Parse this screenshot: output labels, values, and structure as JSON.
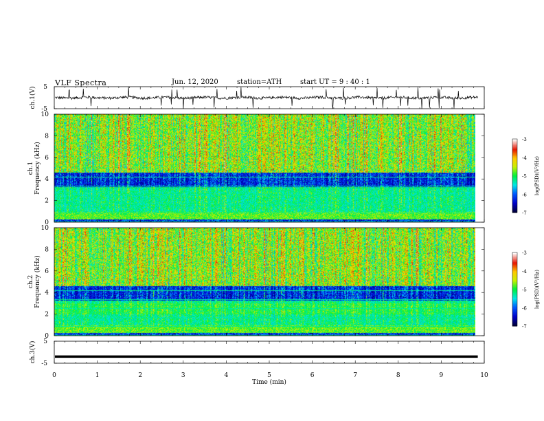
{
  "header": {
    "title": "VLF  Spectra",
    "date": "Jun. 12, 2020",
    "station": "station=ATH",
    "start": "start  UT  =   9 : 40 : 1"
  },
  "colors": {
    "waveform": "#000000",
    "colormap": [
      "#000080",
      "#0000ff",
      "#00ffff",
      "#00ff00",
      "#ffff00",
      "#ff0000",
      "#ffffff"
    ]
  },
  "chart_data": [
    {
      "type": "line",
      "name": "ch1-waveform",
      "ylabel": "ch.1(V)",
      "ylim": [
        -5,
        5
      ],
      "yticks": [
        -5,
        5
      ],
      "xlim": [
        0,
        10
      ],
      "description_level": 0,
      "noise_amplitude": 1.0,
      "spikes": true
    },
    {
      "type": "heatmap",
      "name": "ch1-spectrogram",
      "ylabel_top": "ch.1",
      "ylabel": "Frequency  (kHz)",
      "ylim": [
        0,
        10
      ],
      "yticks": [
        0,
        2,
        4,
        6,
        8,
        10
      ],
      "xlim": [
        0,
        9.8
      ],
      "colorbar": {
        "label": "log(PSD)(V²/Hz)",
        "ticks": [
          "-3",
          "-4",
          "-5",
          "-6",
          "-7"
        ],
        "range": [
          -7,
          -3
        ]
      }
    },
    {
      "type": "heatmap",
      "name": "ch2-spectrogram",
      "ylabel_top": "ch.2",
      "ylabel": "Frequency  (kHz)",
      "ylim": [
        0,
        10
      ],
      "yticks": [
        0,
        2,
        4,
        6,
        8,
        10
      ],
      "xlim": [
        0,
        9.8
      ],
      "colorbar": {
        "label": "log(PSD)(V²/Hz)",
        "ticks": [
          "-3",
          "-4",
          "-5",
          "-6",
          "-7"
        ],
        "range": [
          -7,
          -3
        ]
      }
    },
    {
      "type": "line",
      "name": "ch3-waveform",
      "ylabel": "ch.3(V)",
      "ylim": [
        -5,
        5
      ],
      "yticks": [
        -5,
        5
      ],
      "xlim": [
        0,
        10
      ],
      "level": -2
    }
  ],
  "xaxis": {
    "label": "Time  (min)",
    "ticks": [
      "0",
      "1",
      "2",
      "3",
      "4",
      "5",
      "6",
      "7",
      "8",
      "9",
      "10"
    ],
    "range": [
      0,
      10
    ]
  }
}
